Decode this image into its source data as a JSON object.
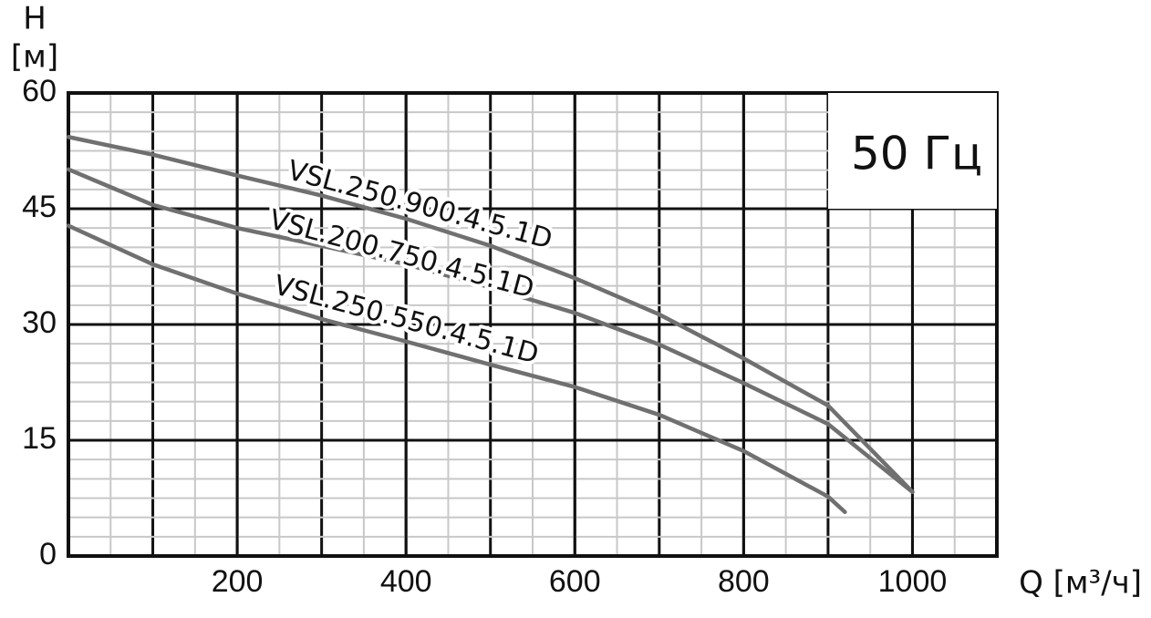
{
  "chart_data": {
    "type": "line",
    "y_label": "H",
    "y_unit": "[м]",
    "x_label": "Q [м³/ч]",
    "annotation": "50 Гц",
    "xlim": [
      0,
      1100
    ],
    "ylim": [
      0,
      60
    ],
    "xticks": [
      200,
      400,
      600,
      800,
      1000
    ],
    "yticks": [
      0,
      15,
      30,
      45,
      60
    ],
    "grid": true,
    "series": [
      {
        "name": "VSL.250.900.4.5.1D",
        "color": "#707070",
        "x": [
          0,
          100,
          200,
          300,
          400,
          500,
          600,
          700,
          800,
          900,
          1000
        ],
        "values": [
          54.3,
          52.0,
          49.3,
          46.7,
          43.7,
          40.2,
          36.0,
          31.3,
          25.6,
          19.5,
          8.3
        ]
      },
      {
        "name": "VSL.200.750.4.5.1D",
        "color": "#707070",
        "x": [
          0,
          100,
          200,
          300,
          400,
          500,
          600,
          700,
          800,
          900,
          1000
        ],
        "values": [
          50.1,
          45.5,
          42.5,
          40.2,
          37.8,
          34.8,
          31.5,
          27.4,
          22.4,
          17.1,
          8.3
        ]
      },
      {
        "name": "VSL.250.550.4.5.1D",
        "color": "#707070",
        "x": [
          0,
          100,
          200,
          300,
          400,
          500,
          600,
          700,
          800,
          900,
          920
        ],
        "values": [
          42.8,
          37.8,
          34.0,
          30.7,
          27.8,
          24.8,
          21.9,
          18.3,
          13.6,
          7.7,
          5.7
        ]
      }
    ]
  }
}
